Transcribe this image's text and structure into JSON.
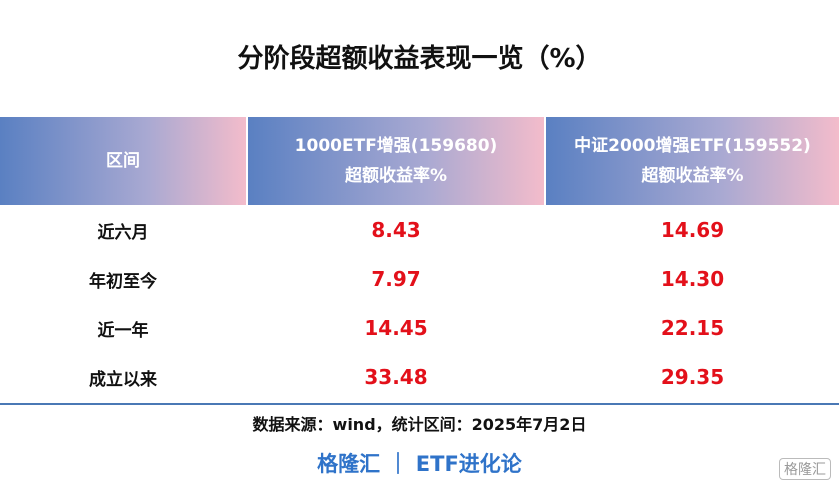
{
  "title": "分阶段超额收益表现一览（%）",
  "table": {
    "header": [
      [
        "区间"
      ],
      [
        "1000ETF增强(159680)",
        "超额收益率%"
      ],
      [
        "中证2000增强ETF(159552)",
        "超额收益率%"
      ]
    ],
    "rows": [
      [
        "近六月",
        "8.43",
        "14.69"
      ],
      [
        "年初至今",
        "7.97",
        "14.30"
      ],
      [
        "近一年",
        "14.45",
        "22.15"
      ],
      [
        "成立以来",
        "33.48",
        "29.35"
      ]
    ]
  },
  "source": "数据来源：wind，统计区间：2025年7月2日",
  "footer": "格隆汇 ｜ ETF进化论",
  "watermark": "格隆汇"
}
